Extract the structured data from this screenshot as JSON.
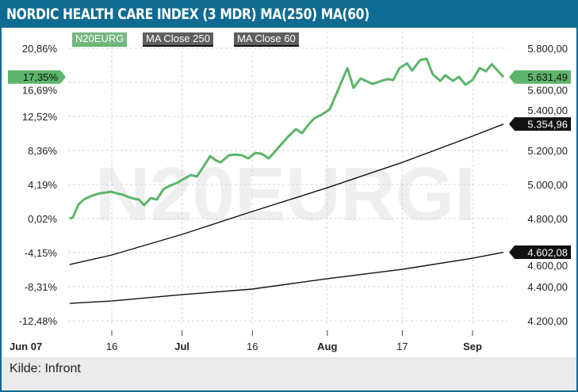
{
  "title": "NORDIC HEALTH CARE INDEX (3 MDR) MA(250) MA(60)",
  "footer": "Kilde: Infront",
  "watermark": "N20EURGI",
  "colors": {
    "brand": "#0f6b92",
    "green": "#5cb56a",
    "black": "#111111",
    "legend_gray": "#5f5f5f",
    "legend_green": "#74b77f"
  },
  "chart_data": {
    "type": "line",
    "title": "NORDIC HEALTH CARE INDEX (3 MDR) MA(250) MA(60)",
    "x_unit": "days since Jun 07",
    "xlim": [
      0,
      93
    ],
    "x_ticks": [
      {
        "x": 0,
        "label": "Jun 07",
        "bold": true
      },
      {
        "x": 9,
        "label": "16",
        "bold": false
      },
      {
        "x": 24,
        "label": "Jul",
        "bold": true
      },
      {
        "x": 39,
        "label": "16",
        "bold": false
      },
      {
        "x": 55,
        "label": "Aug",
        "bold": true
      },
      {
        "x": 71,
        "label": "17",
        "bold": false
      },
      {
        "x": 86,
        "label": "Sep",
        "bold": true
      }
    ],
    "left_axis": {
      "unit": "%",
      "ylim": [
        -12.48,
        20.86
      ],
      "ticks": [
        "20,86%",
        "16,69%",
        "12,52%",
        "8,36%",
        "4,19%",
        "0,02%",
        "-4,15%",
        "-8,31%",
        "-12,48%"
      ],
      "tick_values": [
        20.86,
        16.69,
        12.52,
        8.36,
        4.19,
        0.02,
        -4.15,
        -8.31,
        -12.48
      ]
    },
    "right_axis": {
      "ylim": [
        4200,
        5800
      ],
      "ticks": [
        "5.800,00",
        "5.600,00",
        "5.400,00",
        "5.200,00",
        "5.000,00",
        "4.800,00",
        "4.600,00",
        "4.400,00",
        "4.200,00"
      ],
      "tick_values": [
        5800,
        5600,
        5400,
        5200,
        5000,
        4800,
        4600,
        4400,
        4200
      ]
    },
    "grid": true,
    "legend": [
      "N20EURG",
      "MA Close 250",
      "MA Close 60"
    ],
    "legend_position": "top-left",
    "series": [
      {
        "name": "N20EURG",
        "axis": "left",
        "color": "#5cb56a",
        "last_label": "17,35%",
        "last_label_right": "5.631,49",
        "x": [
          0,
          0.7,
          1.9,
          3.2,
          4.8,
          6.5,
          7.8,
          8.8,
          10.0,
          11.5,
          12.7,
          13.9,
          14.8,
          15.9,
          17.3,
          18.6,
          20.0,
          21.2,
          22.4,
          23.2,
          24.6,
          25.9,
          27.1,
          28.4,
          30.0,
          31.1,
          32.2,
          34.0,
          35.4,
          36.8,
          38.1,
          39.6,
          41.0,
          42.5,
          44.0,
          46.4,
          48.3,
          49.6,
          51.0,
          52.3,
          53.7,
          55.5,
          59.3,
          60.6,
          62.1,
          64.7,
          66.5,
          67.9,
          69.1,
          70.4,
          72.0,
          73.1,
          74.8,
          76.2,
          77.5,
          79.1,
          80.2,
          81.8,
          83.1,
          84.5,
          86.0,
          87.5,
          88.9,
          90.1,
          92.6
        ],
        "values": [
          0.01,
          0.2,
          1.76,
          2.43,
          2.82,
          3.11,
          3.21,
          3.31,
          3.11,
          2.92,
          2.63,
          2.43,
          2.34,
          1.66,
          2.53,
          2.34,
          3.6,
          3.99,
          4.28,
          4.47,
          4.96,
          5.34,
          5.15,
          6.22,
          7.67,
          7.18,
          6.89,
          7.77,
          7.86,
          7.77,
          7.38,
          8.06,
          7.96,
          7.38,
          8.35,
          9.9,
          10.97,
          10.48,
          11.55,
          12.33,
          12.71,
          13.39,
          18.44,
          16.01,
          17.17,
          16.5,
          16.88,
          17.08,
          16.98,
          18.44,
          19.02,
          18.14,
          19.41,
          19.6,
          17.66,
          16.88,
          17.56,
          16.88,
          17.37,
          16.4,
          16.98,
          18.44,
          18.05,
          18.92,
          17.35
        ]
      },
      {
        "name": "MA Close 250",
        "axis": "right",
        "color": "#111111",
        "last_label": "5.354,96",
        "x": [
          0,
          9,
          24,
          39,
          55,
          71,
          86,
          92.6
        ],
        "values": [
          4530,
          4586,
          4707,
          4842,
          4981,
          5130,
          5284,
          5354.96
        ]
      },
      {
        "name": "MA Close 60",
        "axis": "right",
        "color": "#111111",
        "last_label": "4.602,08",
        "x": [
          0,
          9,
          24,
          39,
          55,
          71,
          86,
          92.6
        ],
        "values": [
          4302,
          4316,
          4353,
          4386,
          4447,
          4502,
          4567,
          4602.08
        ]
      }
    ]
  }
}
